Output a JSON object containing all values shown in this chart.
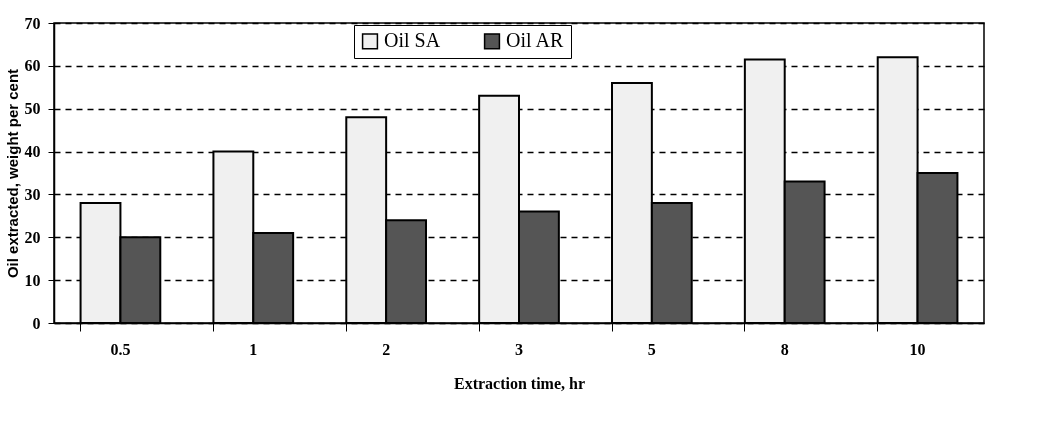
{
  "chart_data": {
    "type": "bar",
    "xlabel": "Extraction time, hr",
    "ylabel": "Oil extracted, weight per cent",
    "categories": [
      "0.5",
      "1",
      "2",
      "3",
      "5",
      "8",
      "10"
    ],
    "series": [
      {
        "name": "Oil SA",
        "color": "#f0f0f0",
        "values": [
          28,
          40,
          48,
          53,
          56,
          61.5,
          62
        ]
      },
      {
        "name": "Oil AR",
        "color": "#555555",
        "values": [
          20,
          21,
          24,
          26,
          28,
          33,
          35
        ]
      }
    ],
    "ylim": [
      0,
      70
    ],
    "yticks": [
      0,
      10,
      20,
      30,
      40,
      50,
      60,
      70
    ],
    "grid": "y",
    "legend": "top"
  }
}
